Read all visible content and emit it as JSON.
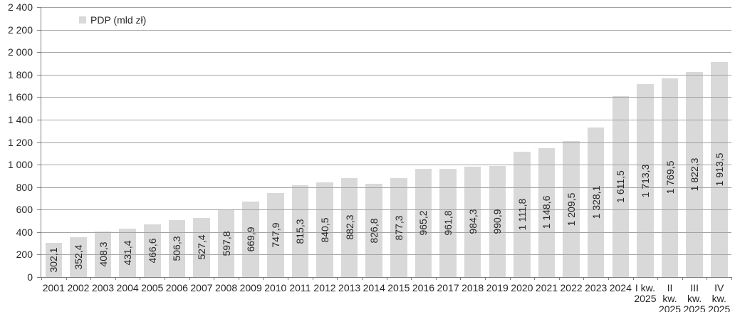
{
  "chart_data": {
    "type": "bar",
    "legend_label": "PDP (mld zł)",
    "legend_position": "top-left",
    "grid": true,
    "categories": [
      "2001",
      "2002",
      "2003",
      "2004",
      "2005",
      "2006",
      "2007",
      "2008",
      "2009",
      "2010",
      "2011",
      "2012",
      "2013",
      "2014",
      "2015",
      "2016",
      "2017",
      "2018",
      "2019",
      "2020",
      "2021",
      "2022",
      "2023",
      "2024",
      "I kw.\n2025",
      "II kw.\n2025",
      "III kw.\n2025",
      "IV kw.\n2025"
    ],
    "values": [
      302.1,
      352.4,
      408.3,
      431.4,
      466.6,
      506.3,
      527.4,
      597.8,
      669.9,
      747.9,
      815.3,
      840.5,
      882.3,
      826.8,
      877.3,
      965.2,
      961.8,
      984.3,
      990.9,
      1111.8,
      1148.6,
      1209.5,
      1328.1,
      1611.5,
      1713.3,
      1769.5,
      1822.3,
      1913.5
    ],
    "bar_labels": [
      "302,1",
      "352,4",
      "408,3",
      "431,4",
      "466,6",
      "506,3",
      "527,4",
      "597,8",
      "669,9",
      "747,9",
      "815,3",
      "840,5",
      "882,3",
      "826,8",
      "877,3",
      "965,2",
      "961,8",
      "984,3",
      "990,9",
      "1 111,8",
      "1 148,6",
      "1 209,5",
      "1 328,1",
      "1 611,5",
      "1 713,3",
      "1 769,5",
      "1 822,3",
      "1 913,5"
    ],
    "ylim": [
      0,
      2400
    ],
    "ytick_step": 200,
    "ytick_labels": [
      "0",
      "200",
      "400",
      "600",
      "800",
      "1 000",
      "1 200",
      "1 400",
      "1 600",
      "1 800",
      "2 000",
      "2 200",
      "2 400"
    ],
    "colors": {
      "bar": "#d9d9d9",
      "gridline": "#a3a3a3",
      "axis": "#7f7f7f",
      "text": "#262626",
      "background": "#ffffff"
    }
  }
}
